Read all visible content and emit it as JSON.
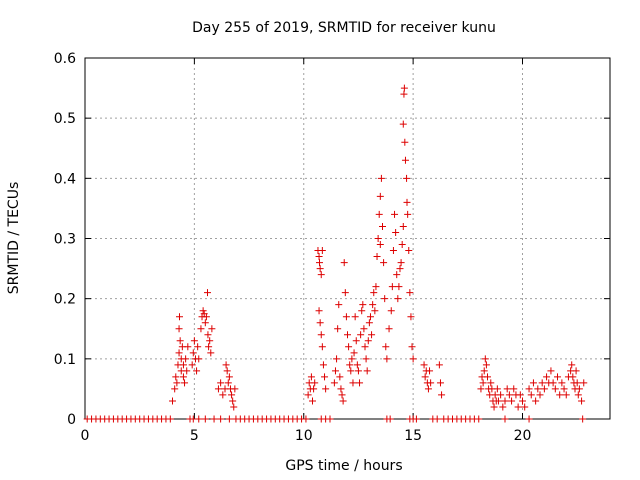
{
  "chart_data": {
    "type": "scatter",
    "title": "Day 255 of 2019, SRMTID for receiver kunu",
    "xlabel": "GPS time / hours",
    "ylabel": "SRMTID / TECUs",
    "xlim": [
      0,
      24
    ],
    "ylim": [
      0,
      0.6
    ],
    "xticks": [
      0,
      5,
      10,
      15,
      20
    ],
    "yticks": [
      0,
      0.1,
      0.2,
      0.3,
      0.4,
      0.5,
      0.6
    ],
    "xtick_labels": [
      "0",
      "5",
      "10",
      "15",
      "20"
    ],
    "ytick_labels": [
      "0",
      "0.1",
      "0.2",
      "0.3",
      "0.4",
      "0.5",
      "0.6"
    ],
    "grid": true,
    "marker": "+",
    "color": "#dd0000",
    "series": [
      {
        "name": "SRMTID",
        "points": [
          [
            0.1,
            0
          ],
          [
            0.3,
            0
          ],
          [
            0.5,
            0
          ],
          [
            0.7,
            0
          ],
          [
            0.9,
            0
          ],
          [
            1.1,
            0
          ],
          [
            1.3,
            0
          ],
          [
            1.5,
            0
          ],
          [
            1.7,
            0
          ],
          [
            1.9,
            0
          ],
          [
            2.1,
            0
          ],
          [
            2.3,
            0
          ],
          [
            2.5,
            0
          ],
          [
            2.7,
            0
          ],
          [
            2.9,
            0
          ],
          [
            3.1,
            0
          ],
          [
            3.3,
            0
          ],
          [
            3.5,
            0
          ],
          [
            3.7,
            0
          ],
          [
            3.9,
            0
          ],
          [
            4.8,
            0
          ],
          [
            4.95,
            0
          ],
          [
            5.2,
            0
          ],
          [
            5.5,
            0
          ],
          [
            5.9,
            0
          ],
          [
            6.2,
            0
          ],
          [
            6.6,
            0
          ],
          [
            6.9,
            0
          ],
          [
            7.1,
            0
          ],
          [
            7.3,
            0
          ],
          [
            7.5,
            0
          ],
          [
            7.7,
            0
          ],
          [
            7.9,
            0
          ],
          [
            8.1,
            0
          ],
          [
            8.3,
            0
          ],
          [
            8.5,
            0
          ],
          [
            8.7,
            0
          ],
          [
            8.9,
            0
          ],
          [
            9.1,
            0
          ],
          [
            9.3,
            0
          ],
          [
            9.5,
            0
          ],
          [
            9.7,
            0
          ],
          [
            9.9,
            0
          ],
          [
            10.1,
            0
          ],
          [
            10.8,
            0
          ],
          [
            11.0,
            0
          ],
          [
            11.2,
            0
          ],
          [
            13.8,
            0
          ],
          [
            13.95,
            0
          ],
          [
            14.85,
            0
          ],
          [
            15.0,
            0
          ],
          [
            15.15,
            0
          ],
          [
            15.9,
            0
          ],
          [
            16.1,
            0
          ],
          [
            16.4,
            0
          ],
          [
            16.6,
            0
          ],
          [
            16.8,
            0
          ],
          [
            17.0,
            0
          ],
          [
            17.2,
            0
          ],
          [
            17.4,
            0
          ],
          [
            17.6,
            0
          ],
          [
            17.8,
            0
          ],
          [
            18.0,
            0
          ],
          [
            19.2,
            0
          ],
          [
            20.3,
            0
          ],
          [
            22.75,
            0
          ],
          [
            4.0,
            0.03
          ],
          [
            4.1,
            0.05
          ],
          [
            4.15,
            0.07
          ],
          [
            4.2,
            0.06
          ],
          [
            4.25,
            0.09
          ],
          [
            4.3,
            0.11
          ],
          [
            4.3,
            0.15
          ],
          [
            4.32,
            0.17
          ],
          [
            4.35,
            0.13
          ],
          [
            4.4,
            0.08
          ],
          [
            4.4,
            0.1
          ],
          [
            4.45,
            0.12
          ],
          [
            4.5,
            0.09
          ],
          [
            4.5,
            0.07
          ],
          [
            4.55,
            0.06
          ],
          [
            4.6,
            0.1
          ],
          [
            4.65,
            0.08
          ],
          [
            4.7,
            0.12
          ],
          [
            4.9,
            0.09
          ],
          [
            4.95,
            0.11
          ],
          [
            5.0,
            0.13
          ],
          [
            5.05,
            0.1
          ],
          [
            5.1,
            0.08
          ],
          [
            5.15,
            0.12
          ],
          [
            5.2,
            0.1
          ],
          [
            5.3,
            0.15
          ],
          [
            5.35,
            0.17
          ],
          [
            5.4,
            0.18
          ],
          [
            5.45,
            0.175
          ],
          [
            5.5,
            0.16
          ],
          [
            5.55,
            0.17
          ],
          [
            5.6,
            0.21
          ],
          [
            5.62,
            0.14
          ],
          [
            5.65,
            0.12
          ],
          [
            5.7,
            0.13
          ],
          [
            5.75,
            0.11
          ],
          [
            5.8,
            0.15
          ],
          [
            6.1,
            0.05
          ],
          [
            6.2,
            0.06
          ],
          [
            6.3,
            0.04
          ],
          [
            6.4,
            0.05
          ],
          [
            6.45,
            0.09
          ],
          [
            6.5,
            0.08
          ],
          [
            6.55,
            0.06
          ],
          [
            6.6,
            0.07
          ],
          [
            6.65,
            0.05
          ],
          [
            6.7,
            0.04
          ],
          [
            6.75,
            0.03
          ],
          [
            6.8,
            0.02
          ],
          [
            6.85,
            0.05
          ],
          [
            10.2,
            0.04
          ],
          [
            10.25,
            0.06
          ],
          [
            10.3,
            0.05
          ],
          [
            10.35,
            0.07
          ],
          [
            10.4,
            0.03
          ],
          [
            10.45,
            0.05
          ],
          [
            10.5,
            0.06
          ],
          [
            10.65,
            0.28
          ],
          [
            10.7,
            0.27
          ],
          [
            10.72,
            0.26
          ],
          [
            10.75,
            0.25
          ],
          [
            10.8,
            0.24
          ],
          [
            10.85,
            0.28
          ],
          [
            10.7,
            0.18
          ],
          [
            10.75,
            0.16
          ],
          [
            10.8,
            0.14
          ],
          [
            10.85,
            0.12
          ],
          [
            10.9,
            0.09
          ],
          [
            10.95,
            0.07
          ],
          [
            11.0,
            0.05
          ],
          [
            11.4,
            0.06
          ],
          [
            11.45,
            0.08
          ],
          [
            11.5,
            0.1
          ],
          [
            11.55,
            0.15
          ],
          [
            11.6,
            0.19
          ],
          [
            11.65,
            0.07
          ],
          [
            11.7,
            0.05
          ],
          [
            11.75,
            0.04
          ],
          [
            11.8,
            0.03
          ],
          [
            11.85,
            0.26
          ],
          [
            11.9,
            0.21
          ],
          [
            11.95,
            0.17
          ],
          [
            12.0,
            0.14
          ],
          [
            12.05,
            0.12
          ],
          [
            12.1,
            0.09
          ],
          [
            12.15,
            0.08
          ],
          [
            12.2,
            0.1
          ],
          [
            12.25,
            0.06
          ],
          [
            12.3,
            0.11
          ],
          [
            12.35,
            0.17
          ],
          [
            12.4,
            0.13
          ],
          [
            12.45,
            0.09
          ],
          [
            12.5,
            0.08
          ],
          [
            12.55,
            0.06
          ],
          [
            12.6,
            0.14
          ],
          [
            12.65,
            0.18
          ],
          [
            12.7,
            0.19
          ],
          [
            12.75,
            0.15
          ],
          [
            12.8,
            0.12
          ],
          [
            12.85,
            0.1
          ],
          [
            12.9,
            0.08
          ],
          [
            12.95,
            0.13
          ],
          [
            13.0,
            0.16
          ],
          [
            13.05,
            0.17
          ],
          [
            13.1,
            0.14
          ],
          [
            13.15,
            0.19
          ],
          [
            13.2,
            0.21
          ],
          [
            13.25,
            0.18
          ],
          [
            13.3,
            0.22
          ],
          [
            13.35,
            0.27
          ],
          [
            13.4,
            0.3
          ],
          [
            13.45,
            0.34
          ],
          [
            13.5,
            0.37
          ],
          [
            13.55,
            0.4
          ],
          [
            13.5,
            0.29
          ],
          [
            13.6,
            0.32
          ],
          [
            13.65,
            0.26
          ],
          [
            13.7,
            0.2
          ],
          [
            13.75,
            0.12
          ],
          [
            13.8,
            0.1
          ],
          [
            13.9,
            0.15
          ],
          [
            14.0,
            0.18
          ],
          [
            14.05,
            0.22
          ],
          [
            14.1,
            0.28
          ],
          [
            14.15,
            0.34
          ],
          [
            14.2,
            0.31
          ],
          [
            14.25,
            0.24
          ],
          [
            14.3,
            0.2
          ],
          [
            14.35,
            0.22
          ],
          [
            14.4,
            0.25
          ],
          [
            14.45,
            0.26
          ],
          [
            14.5,
            0.29
          ],
          [
            14.55,
            0.32
          ],
          [
            14.55,
            0.49
          ],
          [
            14.6,
            0.55
          ],
          [
            14.58,
            0.54
          ],
          [
            14.62,
            0.46
          ],
          [
            14.65,
            0.43
          ],
          [
            14.7,
            0.4
          ],
          [
            14.72,
            0.36
          ],
          [
            14.75,
            0.34
          ],
          [
            14.8,
            0.28
          ],
          [
            14.85,
            0.21
          ],
          [
            14.9,
            0.17
          ],
          [
            14.95,
            0.12
          ],
          [
            15.0,
            0.1
          ],
          [
            15.5,
            0.09
          ],
          [
            15.55,
            0.07
          ],
          [
            15.6,
            0.08
          ],
          [
            15.65,
            0.06
          ],
          [
            15.7,
            0.05
          ],
          [
            15.75,
            0.08
          ],
          [
            15.8,
            0.06
          ],
          [
            16.2,
            0.09
          ],
          [
            16.25,
            0.06
          ],
          [
            16.3,
            0.04
          ],
          [
            18.1,
            0.05
          ],
          [
            18.15,
            0.07
          ],
          [
            18.2,
            0.06
          ],
          [
            18.25,
            0.08
          ],
          [
            18.3,
            0.1
          ],
          [
            18.35,
            0.09
          ],
          [
            18.4,
            0.07
          ],
          [
            18.45,
            0.05
          ],
          [
            18.5,
            0.04
          ],
          [
            18.55,
            0.06
          ],
          [
            18.6,
            0.05
          ],
          [
            18.65,
            0.03
          ],
          [
            18.7,
            0.02
          ],
          [
            18.75,
            0.04
          ],
          [
            18.8,
            0.03
          ],
          [
            18.85,
            0.05
          ],
          [
            18.9,
            0.03
          ],
          [
            19.0,
            0.04
          ],
          [
            19.1,
            0.02
          ],
          [
            19.2,
            0.03
          ],
          [
            19.3,
            0.05
          ],
          [
            19.4,
            0.04
          ],
          [
            19.5,
            0.03
          ],
          [
            19.6,
            0.05
          ],
          [
            19.7,
            0.04
          ],
          [
            19.8,
            0.02
          ],
          [
            19.9,
            0.04
          ],
          [
            20.0,
            0.03
          ],
          [
            20.1,
            0.02
          ],
          [
            20.3,
            0.05
          ],
          [
            20.4,
            0.04
          ],
          [
            20.5,
            0.06
          ],
          [
            20.6,
            0.03
          ],
          [
            20.7,
            0.05
          ],
          [
            20.8,
            0.04
          ],
          [
            20.9,
            0.06
          ],
          [
            21.0,
            0.05
          ],
          [
            21.1,
            0.07
          ],
          [
            21.2,
            0.06
          ],
          [
            21.3,
            0.08
          ],
          [
            21.4,
            0.06
          ],
          [
            21.5,
            0.05
          ],
          [
            21.6,
            0.07
          ],
          [
            21.7,
            0.04
          ],
          [
            21.8,
            0.06
          ],
          [
            21.9,
            0.05
          ],
          [
            22.0,
            0.04
          ],
          [
            22.1,
            0.07
          ],
          [
            22.2,
            0.08
          ],
          [
            22.25,
            0.09
          ],
          [
            22.3,
            0.07
          ],
          [
            22.35,
            0.06
          ],
          [
            22.4,
            0.05
          ],
          [
            22.45,
            0.08
          ],
          [
            22.5,
            0.06
          ],
          [
            22.55,
            0.04
          ],
          [
            22.6,
            0.05
          ],
          [
            22.7,
            0.03
          ],
          [
            22.8,
            0.06
          ]
        ]
      }
    ]
  }
}
